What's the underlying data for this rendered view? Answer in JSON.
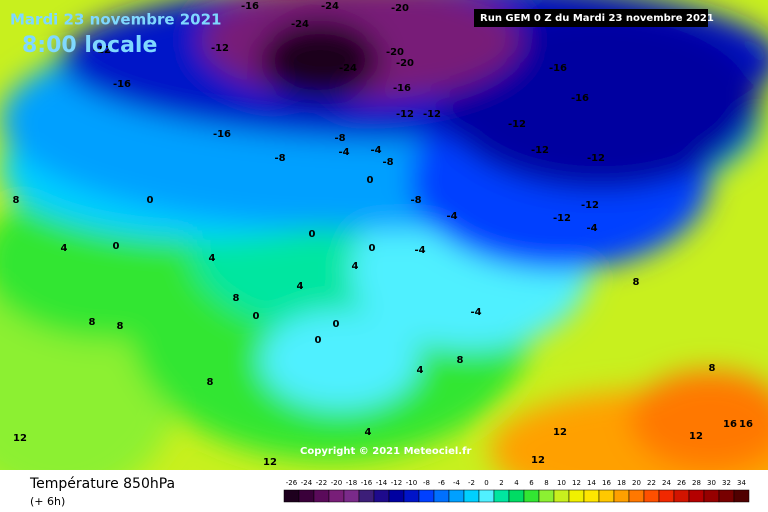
{
  "header": {
    "date": "Mardi 23 novembre 2021",
    "time": "8:00 locale",
    "run": "Run GEM 0 Z du Mardi 23 novembre 2021"
  },
  "copyright": "Copyright © 2021 Meteociel.fr",
  "legend": {
    "title": "Température 850hPa",
    "step": "(+ 6h)",
    "ticks": [
      -26,
      -24,
      -22,
      -20,
      -18,
      -16,
      -14,
      -12,
      -10,
      -8,
      -6,
      -4,
      -2,
      0,
      2,
      4,
      6,
      8,
      10,
      12,
      14,
      16,
      18,
      20,
      22,
      24,
      26,
      28,
      30,
      32,
      34
    ],
    "colors": [
      "#1e001e",
      "#3a003a",
      "#5a0a5a",
      "#781e78",
      "#7a2a8a",
      "#3c1e78",
      "#1e0a8c",
      "#0000a0",
      "#0014c8",
      "#0040ff",
      "#0070ff",
      "#00a0ff",
      "#00d0ff",
      "#50f0ff",
      "#00e6a0",
      "#00dc64",
      "#32e632",
      "#8cf032",
      "#c8f01e",
      "#f0f000",
      "#ffe600",
      "#ffc800",
      "#ffa000",
      "#ff7800",
      "#ff5000",
      "#f02800",
      "#d21400",
      "#b40000",
      "#960000",
      "#780000",
      "#500000"
    ]
  },
  "contour_labels": [
    -16,
    -24,
    -20,
    -24,
    -12,
    -12,
    -16,
    -24,
    -20,
    -20,
    -16,
    -16,
    -16,
    -12,
    -12,
    -16,
    -8,
    -12,
    -8,
    -12,
    -12,
    -12,
    -12,
    -8,
    -4,
    -4,
    -8,
    -4,
    0,
    0,
    0,
    0,
    -4,
    -4,
    0,
    4,
    4,
    4,
    8,
    8,
    8,
    8,
    8,
    12,
    12,
    12,
    8,
    12,
    16,
    16,
    12,
    4,
    0,
    0,
    4,
    8,
    8,
    0,
    4,
    -4
  ]
}
